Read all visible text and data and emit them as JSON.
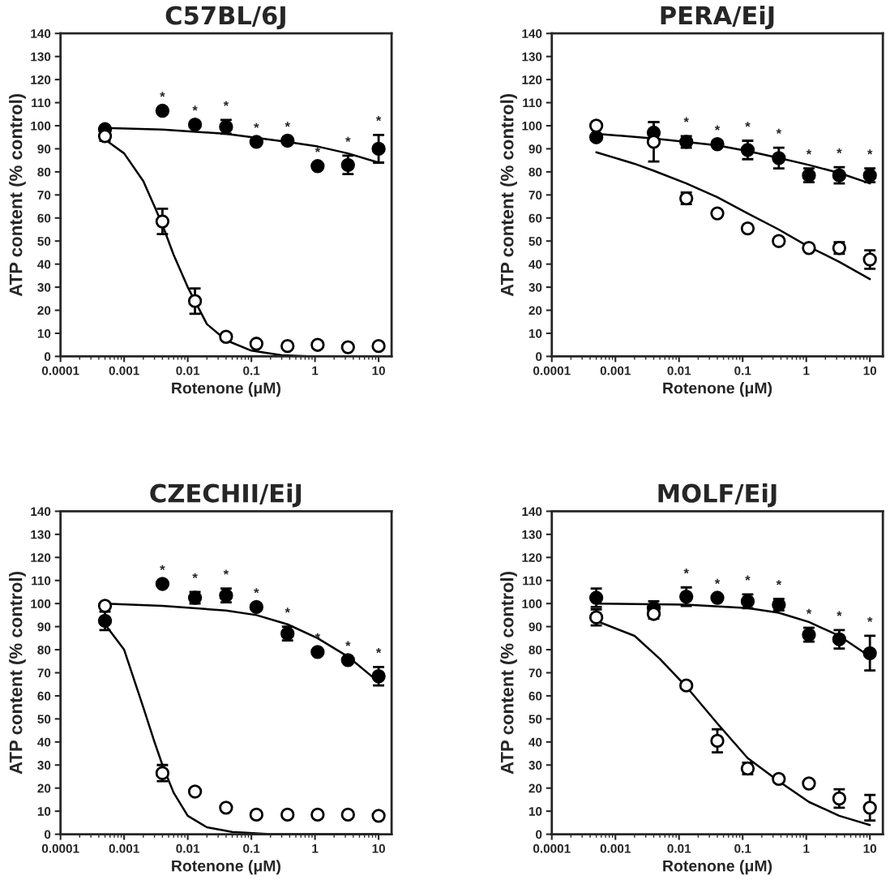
{
  "chart_data": [
    {
      "type": "scatter",
      "title": "C57BL/6J",
      "xlabel": "Rotenone (μM)",
      "ylabel": "ATP content (% control)",
      "log": "x",
      "grid": false,
      "legend": false,
      "x": [
        0.0005,
        0.004,
        0.013,
        0.04,
        0.12,
        0.37,
        1.1,
        3.3,
        10
      ],
      "xlim": [
        0.0001,
        16
      ],
      "xticks": [
        0.0001,
        0.001,
        0.01,
        0.1,
        1,
        10
      ],
      "ylim": [
        0,
        140
      ],
      "yticks": [
        0,
        10,
        20,
        30,
        40,
        50,
        60,
        70,
        80,
        90,
        100,
        110,
        120,
        130,
        140
      ],
      "series": [
        {
          "marker": "circle",
          "color": "#000000",
          "values": [
            98.5,
            106.5,
            100.5,
            99.5,
            93,
            93.5,
            82.5,
            83,
            90
          ],
          "errors": [
            null,
            null,
            null,
            3,
            null,
            null,
            null,
            4,
            6
          ]
        },
        {
          "marker": "circle",
          "color": "#ffffff",
          "values": [
            95.5,
            58.5,
            24,
            8.5,
            5.5,
            4.5,
            5,
            4,
            4.5
          ],
          "errors": [
            2,
            5.5,
            5.5,
            null,
            null,
            null,
            null,
            null,
            null
          ]
        },
        {
          "type": "line",
          "color": "#000000",
          "x": [
            0.0005,
            0.004,
            0.04,
            0.37,
            1.1,
            3.3,
            10
          ],
          "values": [
            99,
            98.3,
            96.5,
            93,
            91,
            88,
            84
          ]
        },
        {
          "type": "line",
          "color": "#000000",
          "x": [
            0.0005,
            0.001,
            0.002,
            0.003,
            0.004,
            0.006,
            0.01,
            0.02,
            0.04,
            0.1,
            0.3,
            1,
            10
          ],
          "values": [
            94,
            88,
            76,
            65,
            57,
            44,
            30,
            14,
            7,
            2.5,
            0.5,
            0,
            0
          ]
        }
      ],
      "annotations": [
        {
          "text": "*",
          "x": 0.004,
          "y": 106.5
        },
        {
          "text": "*",
          "x": 0.013,
          "y": 100.5
        },
        {
          "text": "*",
          "x": 0.04,
          "y": 99.5
        },
        {
          "text": "*",
          "x": 0.12,
          "y": 93
        },
        {
          "text": "*",
          "x": 0.37,
          "y": 93.5
        },
        {
          "text": "*",
          "x": 1.1,
          "y": 82.5
        },
        {
          "text": "*",
          "x": 3.3,
          "y": 83
        },
        {
          "text": "*",
          "x": 10,
          "y": 90
        }
      ]
    },
    {
      "type": "scatter",
      "title": "PERA/EiJ",
      "xlabel": "Rotenone (μM)",
      "ylabel": "ATP content (% control)",
      "log": "x",
      "grid": false,
      "legend": false,
      "x": [
        0.0005,
        0.004,
        0.013,
        0.04,
        0.12,
        0.37,
        1.1,
        3.3,
        10
      ],
      "xlim": [
        0.0001,
        16
      ],
      "xticks": [
        0.0001,
        0.001,
        0.01,
        0.1,
        1,
        10
      ],
      "ylim": [
        0,
        140
      ],
      "yticks": [
        0,
        10,
        20,
        30,
        40,
        50,
        60,
        70,
        80,
        90,
        100,
        110,
        120,
        130,
        140
      ],
      "series": [
        {
          "marker": "circle",
          "color": "#000000",
          "values": [
            95,
            97,
            93,
            92,
            89.5,
            86,
            78.5,
            78.5,
            78.5
          ],
          "errors": [
            null,
            4.5,
            2.5,
            null,
            4,
            4.5,
            3,
            3.5,
            3
          ]
        },
        {
          "marker": "circle",
          "color": "#ffffff",
          "values": [
            100,
            93,
            68.5,
            62,
            55.5,
            50,
            47,
            47,
            42
          ],
          "errors": [
            null,
            8.5,
            2.5,
            null,
            null,
            null,
            null,
            2.5,
            4
          ]
        },
        {
          "type": "line",
          "color": "#000000",
          "x": [
            0.0005,
            0.004,
            0.013,
            0.04,
            0.12,
            0.37,
            1.1,
            3.3,
            10
          ],
          "values": [
            96.5,
            94.5,
            93,
            91.5,
            89,
            86,
            83,
            79.5,
            75
          ]
        },
        {
          "type": "line",
          "color": "#000000",
          "x": [
            0.0005,
            0.002,
            0.004,
            0.013,
            0.04,
            0.12,
            0.37,
            1.1,
            3.3,
            10
          ],
          "values": [
            88.5,
            83.5,
            80.5,
            75,
            69,
            62,
            55,
            47.5,
            41,
            33.5
          ]
        }
      ],
      "annotations": [
        {
          "text": "*",
          "x": 0.013,
          "y": 93
        },
        {
          "text": "*",
          "x": 0.04,
          "y": 92
        },
        {
          "text": "*",
          "x": 0.12,
          "y": 89.5
        },
        {
          "text": "*",
          "x": 0.37,
          "y": 86
        },
        {
          "text": "*",
          "x": 1.1,
          "y": 78.5
        },
        {
          "text": "*",
          "x": 3.3,
          "y": 78.5
        },
        {
          "text": "*",
          "x": 10,
          "y": 78.5
        }
      ]
    },
    {
      "type": "scatter",
      "title": "CZECHII/EiJ",
      "xlabel": "Rotenone (μM)",
      "ylabel": "ATP content (% control)",
      "log": "x",
      "grid": false,
      "legend": false,
      "x": [
        0.0005,
        0.004,
        0.013,
        0.04,
        0.12,
        0.37,
        1.1,
        3.3,
        10
      ],
      "xlim": [
        0.0001,
        16
      ],
      "xticks": [
        0.0001,
        0.001,
        0.01,
        0.1,
        1,
        10
      ],
      "ylim": [
        0,
        140
      ],
      "yticks": [
        0,
        10,
        20,
        30,
        40,
        50,
        60,
        70,
        80,
        90,
        100,
        110,
        120,
        130,
        140
      ],
      "series": [
        {
          "marker": "circle",
          "color": "#000000",
          "values": [
            92.5,
            108.5,
            102.5,
            103.5,
            98.5,
            87,
            79,
            75.5,
            68.5
          ],
          "errors": [
            4,
            null,
            2.5,
            3,
            null,
            3,
            null,
            null,
            4
          ]
        },
        {
          "marker": "circle",
          "color": "#ffffff",
          "values": [
            99,
            26.5,
            18.5,
            11.5,
            8.5,
            8.5,
            8.5,
            8.5,
            8
          ],
          "errors": [
            null,
            3.5,
            null,
            null,
            null,
            null,
            null,
            null,
            null
          ]
        },
        {
          "type": "line",
          "color": "#000000",
          "x": [
            0.0005,
            0.004,
            0.04,
            0.12,
            0.37,
            1.1,
            3.3,
            10
          ],
          "values": [
            100,
            99,
            97,
            95,
            91,
            85,
            77,
            66
          ]
        },
        {
          "type": "line",
          "color": "#000000",
          "x": [
            0.0005,
            0.001,
            0.002,
            0.003,
            0.004,
            0.006,
            0.01,
            0.02,
            0.05,
            0.2,
            10
          ],
          "values": [
            91,
            80,
            55,
            40,
            30,
            18,
            8,
            3,
            1,
            0,
            0
          ]
        }
      ],
      "annotations": [
        {
          "text": "*",
          "x": 0.004,
          "y": 108.5
        },
        {
          "text": "*",
          "x": 0.013,
          "y": 102.5
        },
        {
          "text": "*",
          "x": 0.04,
          "y": 103.5
        },
        {
          "text": "*",
          "x": 0.12,
          "y": 98.5
        },
        {
          "text": "*",
          "x": 0.37,
          "y": 87
        },
        {
          "text": "*",
          "x": 1.1,
          "y": 79
        },
        {
          "text": "*",
          "x": 3.3,
          "y": 75.5
        },
        {
          "text": "*",
          "x": 10,
          "y": 68.5
        }
      ]
    },
    {
      "type": "scatter",
      "title": "MOLF/EiJ",
      "xlabel": "Rotenone (μM)",
      "ylabel": "ATP content (% control)",
      "log": "x",
      "grid": false,
      "legend": false,
      "x": [
        0.0005,
        0.004,
        0.013,
        0.04,
        0.12,
        0.37,
        1.1,
        3.3,
        10
      ],
      "xlim": [
        0.0001,
        16
      ],
      "xticks": [
        0.0001,
        0.001,
        0.01,
        0.1,
        1,
        10
      ],
      "ylim": [
        0,
        140
      ],
      "yticks": [
        0,
        10,
        20,
        30,
        40,
        50,
        60,
        70,
        80,
        90,
        100,
        110,
        120,
        130,
        140
      ],
      "series": [
        {
          "marker": "circle",
          "color": "#000000",
          "values": [
            102.5,
            98,
            103,
            102.5,
            101,
            99.5,
            86.5,
            84.5,
            78.5
          ],
          "errors": [
            4,
            3,
            4,
            null,
            3,
            2.5,
            3,
            4,
            7.5
          ]
        },
        {
          "marker": "circle",
          "color": "#ffffff",
          "values": [
            94,
            95.5,
            64.5,
            40.5,
            28.5,
            24,
            22,
            15.5,
            11.5
          ],
          "errors": [
            3.5,
            2,
            null,
            5,
            2.5,
            null,
            null,
            4,
            5.5
          ]
        },
        {
          "type": "line",
          "color": "#000000",
          "x": [
            0.0005,
            0.013,
            0.12,
            0.37,
            1.1,
            3.3,
            10
          ],
          "values": [
            100,
            99.5,
            98,
            96,
            92,
            86,
            77
          ]
        },
        {
          "type": "line",
          "color": "#000000",
          "x": [
            0.0005,
            0.002,
            0.005,
            0.013,
            0.04,
            0.12,
            0.37,
            1.1,
            3.3,
            10
          ],
          "values": [
            92.5,
            86,
            76,
            64,
            48,
            33,
            23,
            14,
            8,
            4
          ]
        }
      ],
      "annotations": [
        {
          "text": "*",
          "x": 0.013,
          "y": 103
        },
        {
          "text": "*",
          "x": 0.04,
          "y": 102.5
        },
        {
          "text": "*",
          "x": 0.12,
          "y": 101
        },
        {
          "text": "*",
          "x": 0.37,
          "y": 99.5
        },
        {
          "text": "*",
          "x": 1.1,
          "y": 86.5
        },
        {
          "text": "*",
          "x": 3.3,
          "y": 84.5
        },
        {
          "text": "*",
          "x": 10,
          "y": 78.5
        }
      ]
    }
  ]
}
